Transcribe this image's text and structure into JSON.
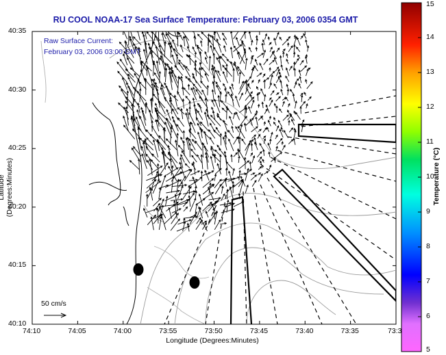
{
  "title": "RU COOL  NOAA-17  Sea Surface Temperature:  February 03, 2006 0354 GMT",
  "legend": {
    "line1": "Raw Surface Current:",
    "line2": "February 03, 2006 03:00 GMT"
  },
  "axes": {
    "xlabel": "Longitude (Degrees:Minutes)",
    "ylabel": "Latitude (Degrees:Minutes)",
    "xticks": [
      "74:10",
      "74:05",
      "74:00",
      "73:55",
      "73:50",
      "73:45",
      "73:40",
      "73:35",
      "73:3"
    ],
    "yticks": [
      "40:35",
      "40:30",
      "40:25",
      "40:20",
      "40:15",
      "40:10"
    ]
  },
  "scale": {
    "label": "50 cm/s"
  },
  "colorbar": {
    "title": "Temperature (°C)",
    "ticks": [
      "15",
      "14",
      "13",
      "12",
      "11",
      "10",
      "9",
      "8",
      "7",
      "6",
      "5"
    ],
    "min": 5,
    "max": 15
  },
  "colors": {
    "title_blue": "#1a1aa8",
    "land_line": "#000000",
    "bathymetry": "#9a9a9a"
  }
}
